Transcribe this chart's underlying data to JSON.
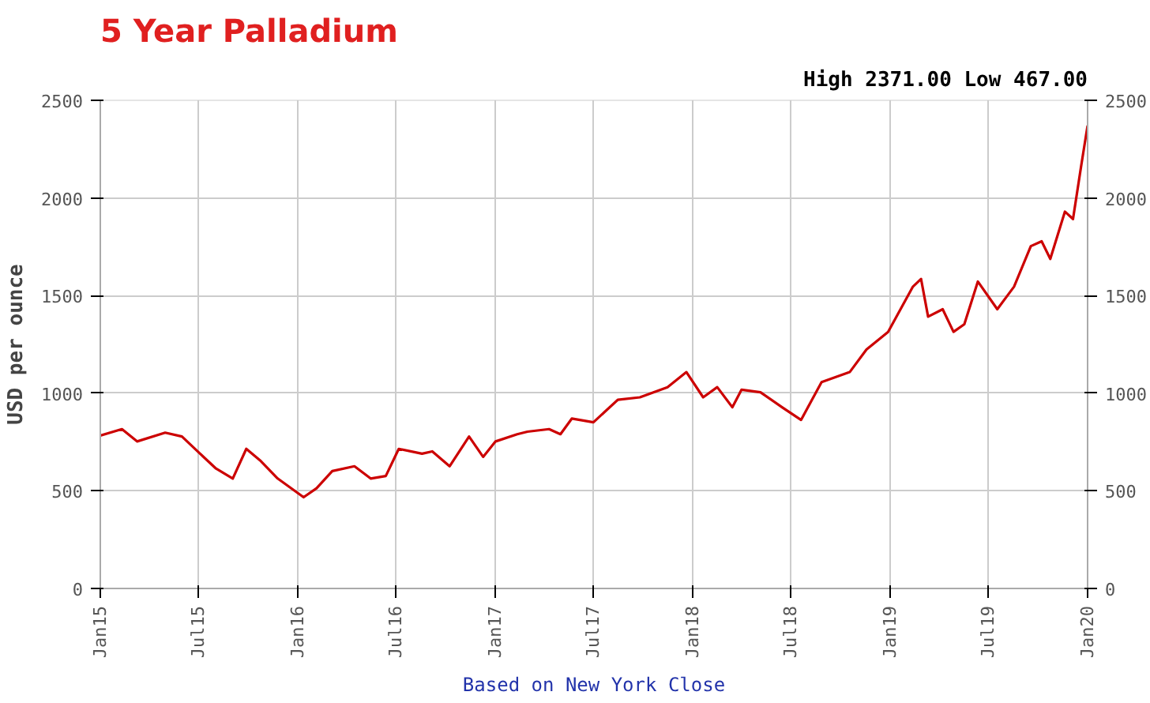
{
  "chart_data": {
    "type": "line",
    "title": "5 Year Palladium",
    "subtitle": "High 2371.00 Low 467.00",
    "ylabel": "USD per ounce",
    "annotations": [
      "Based on New York Close"
    ],
    "x": [
      "2015-01-01",
      "2015-02-10",
      "2015-03-10",
      "2015-05-01",
      "2015-06-01",
      "2015-07-03",
      "2015-08-03",
      "2015-09-03",
      "2015-09-28",
      "2015-10-25",
      "2015-11-25",
      "2016-01-12",
      "2016-02-05",
      "2016-03-05",
      "2016-04-15",
      "2016-05-15",
      "2016-06-12",
      "2016-07-06",
      "2016-08-18",
      "2016-09-06",
      "2016-10-08",
      "2016-11-13",
      "2016-12-09",
      "2017-01-01",
      "2017-02-10",
      "2017-03-01",
      "2017-04-10",
      "2017-05-01",
      "2017-05-22",
      "2017-07-01",
      "2017-08-15",
      "2017-09-25",
      "2017-11-15",
      "2017-12-20",
      "2018-01-20",
      "2018-02-15",
      "2018-03-15",
      "2018-04-01",
      "2018-05-06",
      "2018-06-15",
      "2018-07-20",
      "2018-08-27",
      "2018-10-18",
      "2018-11-18",
      "2018-12-28",
      "2019-02-12",
      "2019-02-27",
      "2019-03-12",
      "2019-04-08",
      "2019-04-28",
      "2019-05-18",
      "2019-06-12",
      "2019-07-18",
      "2019-08-18",
      "2019-09-18",
      "2019-10-08",
      "2019-10-24",
      "2019-11-20",
      "2019-12-05",
      "2019-12-20",
      "2020-01-01"
    ],
    "series": [
      {
        "color": "#cc0000",
        "values": [
          783,
          816,
          753,
          798,
          778,
          694,
          614,
          563,
          715,
          652,
          563,
          467,
          513,
          601,
          626,
          563,
          576,
          715,
          690,
          702,
          626,
          778,
          674,
          753,
          790,
          803,
          816,
          790,
          870,
          851,
          966,
          979,
          1031,
          1108,
          979,
          1031,
          928,
          1018,
          1005,
          928,
          863,
          1057,
          1108,
          1224,
          1314,
          1546,
          1585,
          1392,
          1430,
          1314,
          1353,
          1572,
          1430,
          1546,
          1753,
          1778,
          1688,
          1930,
          1892,
          2162,
          2371
        ]
      }
    ],
    "xlim": [
      "2015-01-01",
      "2020-01-01"
    ],
    "xticks": [
      {
        "value": "2015-01-01",
        "label": "Jan15"
      },
      {
        "value": "2015-07-01",
        "label": "Jul15"
      },
      {
        "value": "2016-01-01",
        "label": "Jan16"
      },
      {
        "value": "2016-07-01",
        "label": "Jul16"
      },
      {
        "value": "2017-01-01",
        "label": "Jan17"
      },
      {
        "value": "2017-07-01",
        "label": "Jul17"
      },
      {
        "value": "2018-01-01",
        "label": "Jan18"
      },
      {
        "value": "2018-07-01",
        "label": "Jul18"
      },
      {
        "value": "2019-01-01",
        "label": "Jan19"
      },
      {
        "value": "2019-07-01",
        "label": "Jul19"
      },
      {
        "value": "2020-01-01",
        "label": "Jan20"
      }
    ],
    "ylim": [
      0,
      2500
    ],
    "yticks": [
      0,
      500,
      1000,
      1500,
      2000,
      2500
    ],
    "y2lim": [
      0,
      2500
    ],
    "y2ticks": [
      0,
      500,
      1000,
      1500,
      2000,
      2500
    ],
    "grid": true
  }
}
